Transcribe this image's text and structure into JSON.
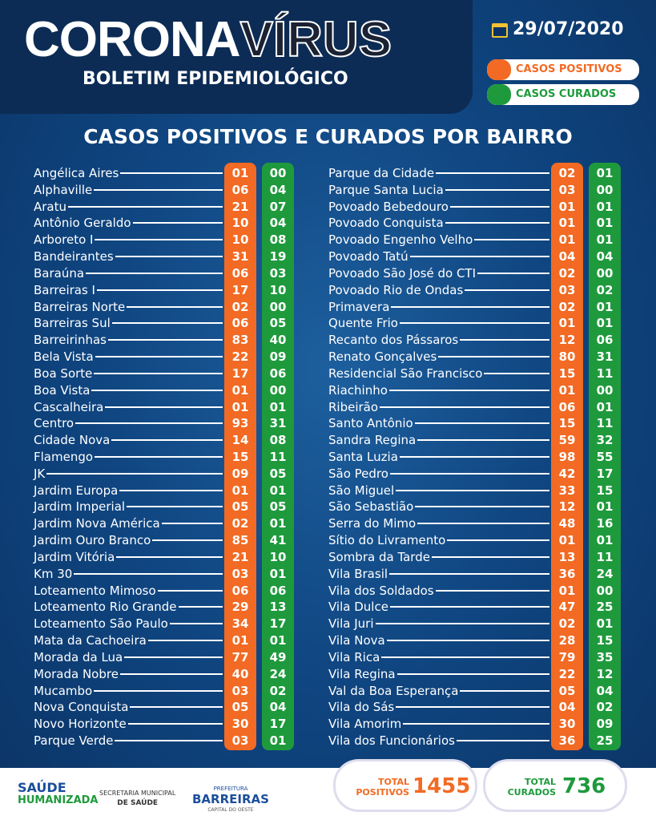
{
  "header": {
    "title_a": "CORONA",
    "title_b": "VÍRUS",
    "subtitle": "BOLETIM EPIDEMIOLÓGICO",
    "date": "29/07/2020",
    "legend": [
      "CASOS POSITIVOS",
      "CASOS CURADOS"
    ]
  },
  "section_title": "CASOS POSITIVOS E CURADOS POR BAIRRO",
  "table": {
    "columns": [
      [
        [
          "Angélica Aires",
          "01",
          "00"
        ],
        [
          "Alphaville",
          "06",
          "04"
        ],
        [
          "Aratu",
          "21",
          "07"
        ],
        [
          "Antônio Geraldo",
          "10",
          "04"
        ],
        [
          "Arboreto I",
          "10",
          "08"
        ],
        [
          "Bandeirantes",
          "31",
          "19"
        ],
        [
          "Baraúna",
          "06",
          "03"
        ],
        [
          "Barreiras I",
          "17",
          "10"
        ],
        [
          "Barreiras Norte",
          "02",
          "00"
        ],
        [
          "Barreiras Sul",
          "06",
          "05"
        ],
        [
          "Barreirinhas",
          "83",
          "40"
        ],
        [
          "Bela Vista",
          "22",
          "09"
        ],
        [
          "Boa Sorte",
          "17",
          "06"
        ],
        [
          "Boa Vista",
          "01",
          "00"
        ],
        [
          "Cascalheira",
          "01",
          "01"
        ],
        [
          "Centro",
          "93",
          "31"
        ],
        [
          "Cidade Nova",
          "14",
          "08"
        ],
        [
          "Flamengo",
          "15",
          "11"
        ],
        [
          "JK",
          "09",
          "05"
        ],
        [
          "Jardim Europa",
          "01",
          "01"
        ],
        [
          "Jardim Imperial",
          "05",
          "05"
        ],
        [
          "Jardim Nova América",
          "02",
          "01"
        ],
        [
          "Jardim Ouro Branco",
          "85",
          "41"
        ],
        [
          "Jardim Vitória",
          "21",
          "10"
        ],
        [
          "Km 30",
          "03",
          "01"
        ],
        [
          "Loteamento Mimoso",
          "06",
          "06"
        ],
        [
          "Loteamento Rio Grande",
          "29",
          "13"
        ],
        [
          "Loteamento São Paulo",
          "34",
          "17"
        ],
        [
          "Mata da Cachoeira",
          "01",
          "01"
        ],
        [
          "Morada da Lua",
          "77",
          "49"
        ],
        [
          "Morada Nobre",
          "40",
          "24"
        ],
        [
          "Mucambo",
          "03",
          "02"
        ],
        [
          "Nova Conquista",
          "05",
          "04"
        ],
        [
          "Novo Horizonte",
          "30",
          "17"
        ],
        [
          "Parque Verde",
          "03",
          "01"
        ]
      ],
      [
        [
          "Parque da Cidade",
          "02",
          "01"
        ],
        [
          "Parque Santa Lucia",
          "03",
          "00"
        ],
        [
          "Povoado Bebedouro",
          "01",
          "01"
        ],
        [
          "Povoado Conquista",
          "01",
          "01"
        ],
        [
          "Povoado Engenho Velho",
          "01",
          "01"
        ],
        [
          "Povoado Tatú",
          "04",
          "04"
        ],
        [
          "Povoado São José do CTI",
          "02",
          "00"
        ],
        [
          "Povoado Rio de Ondas",
          "03",
          "02"
        ],
        [
          "Primavera",
          "02",
          "01"
        ],
        [
          "Quente Frio",
          "01",
          "01"
        ],
        [
          "Recanto dos Pássaros",
          "12",
          "06"
        ],
        [
          "Renato Gonçalves",
          "80",
          "31"
        ],
        [
          "Residencial São Francisco",
          "15",
          "11"
        ],
        [
          "Riachinho",
          "01",
          "00"
        ],
        [
          "Ribeirão",
          "06",
          "01"
        ],
        [
          "Santo Antônio",
          "15",
          "11"
        ],
        [
          "Sandra Regina",
          "59",
          "32"
        ],
        [
          "Santa Luzia",
          "98",
          "55"
        ],
        [
          "São Pedro",
          "42",
          "17"
        ],
        [
          "São Miguel",
          "33",
          "15"
        ],
        [
          "São Sebastião",
          "12",
          "01"
        ],
        [
          "Serra do Mimo",
          "48",
          "16"
        ],
        [
          "Sítio do Livramento",
          "01",
          "01"
        ],
        [
          "Sombra da Tarde",
          "13",
          "11"
        ],
        [
          "Vila Brasil",
          "36",
          "24"
        ],
        [
          "Vila dos Soldados",
          "01",
          "00"
        ],
        [
          "Vila Dulce",
          "47",
          "25"
        ],
        [
          "Vila Juri",
          "02",
          "01"
        ],
        [
          "Vila Nova",
          "28",
          "15"
        ],
        [
          "Vila Rica",
          "79",
          "35"
        ],
        [
          "Vila Regina",
          "22",
          "12"
        ],
        [
          "Val da Boa Esperança",
          "05",
          "04"
        ],
        [
          "Vila do Sás",
          "04",
          "02"
        ],
        [
          "Vila Amorim",
          "30",
          "09"
        ],
        [
          "Vila dos Funcionários",
          "36",
          "25"
        ]
      ]
    ]
  },
  "footer": {
    "logo1": [
      "SAÚDE",
      "HUMANIZADA"
    ],
    "logo2": [
      "SECRETARIA MUNICIPAL",
      "DE SAÚDE"
    ],
    "logo3": [
      "PREFEITURA",
      "BARREIRAS",
      "CAPITAL DO OESTE"
    ],
    "total_positive_label": [
      "TOTAL",
      "POSITIVOS"
    ],
    "total_positive": "1455",
    "total_cured_label": [
      "TOTAL",
      "CURADOS"
    ],
    "total_cured": "736"
  }
}
